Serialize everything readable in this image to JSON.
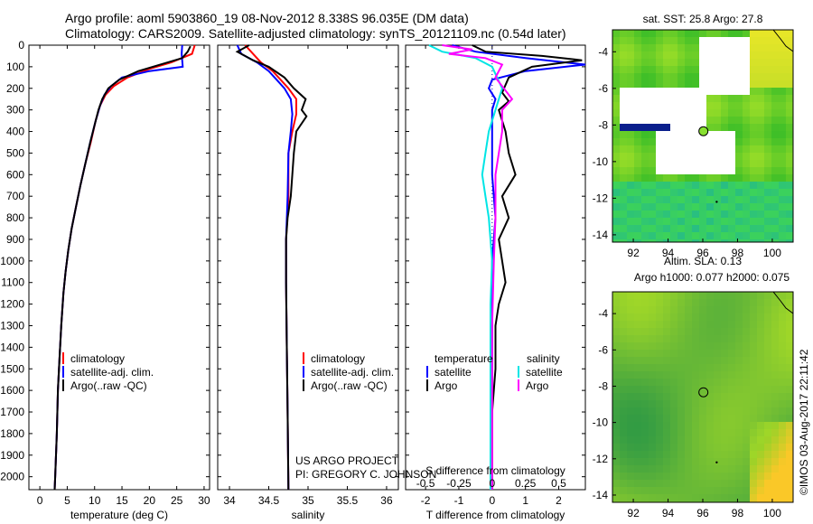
{
  "title_line1": "Argo profile: aoml 5903860_19 08-Nov-2012 8.338S 96.035E (DM data)",
  "title_line2": "Climatology: CARS2009. Satellite-adjusted climatology: synTS_20121109.nc (0.54d later)",
  "credit": "US ARGO PROJECT",
  "pi": "PI: GREGORY C. JOHNSON",
  "side_stamp": "©IMOS 03-Aug-2017 22:11:42",
  "colors": {
    "climatology": "#ff0000",
    "satellite": "#0000ff",
    "argo": "#000000",
    "sal_satellite": "#00e5e5",
    "sal_argo": "#ff00ff"
  },
  "legend": {
    "climatology": "climatology",
    "satellite_adj": "satellite-adj. clim.",
    "argo": "Argo(..raw -QC)",
    "temperature": "temperature",
    "salinity": "salinity",
    "satellite": "satellite",
    "argo_short": "Argo"
  },
  "chart_data": [
    {
      "type": "line",
      "id": "temperature",
      "xlabel": "temperature (deg C)",
      "ylabel": "",
      "xlim": [
        -2,
        31
      ],
      "ylim": [
        2060,
        0
      ],
      "xticks": [
        0,
        5,
        10,
        15,
        20,
        25,
        30
      ],
      "yticks": [
        0,
        100,
        200,
        300,
        400,
        500,
        600,
        700,
        800,
        900,
        1000,
        1100,
        1200,
        1300,
        1400,
        1500,
        1600,
        1700,
        1800,
        1900,
        2000
      ],
      "series": [
        {
          "name": "climatology",
          "color": "red",
          "points": [
            [
              28.3,
              0
            ],
            [
              27.8,
              40
            ],
            [
              24,
              80
            ],
            [
              20,
              110
            ],
            [
              16,
              150
            ],
            [
              13.5,
              190
            ],
            [
              12,
              230
            ],
            [
              11,
              280
            ],
            [
              10.2,
              350
            ],
            [
              9.3,
              450
            ],
            [
              8.3,
              550
            ],
            [
              7.4,
              650
            ],
            [
              6.6,
              750
            ],
            [
              5.8,
              850
            ],
            [
              5.2,
              950
            ],
            [
              4.7,
              1050
            ],
            [
              4.3,
              1150
            ],
            [
              3.9,
              1300
            ],
            [
              3.6,
              1450
            ],
            [
              3.3,
              1600
            ],
            [
              3.1,
              1800
            ],
            [
              2.8,
              2000
            ],
            [
              2.7,
              2060
            ]
          ]
        },
        {
          "name": "satellite-adj. clim.",
          "color": "blue",
          "points": [
            [
              26,
              0
            ],
            [
              25.9,
              40
            ],
            [
              26.1,
              100
            ],
            [
              20,
              120
            ],
            [
              15,
              150
            ],
            [
              13,
              190
            ],
            [
              11.8,
              230
            ],
            [
              11,
              280
            ],
            [
              10.2,
              350
            ],
            [
              9.2,
              450
            ],
            [
              8.3,
              550
            ],
            [
              7.4,
              650
            ],
            [
              6.6,
              750
            ],
            [
              5.8,
              850
            ],
            [
              5.2,
              950
            ],
            [
              4.7,
              1050
            ],
            [
              4.3,
              1150
            ],
            [
              3.9,
              1300
            ],
            [
              3.6,
              1450
            ],
            [
              3.3,
              1600
            ],
            [
              3.1,
              1800
            ],
            [
              2.8,
              2000
            ],
            [
              2.7,
              2060
            ]
          ]
        },
        {
          "name": "Argo(..raw -QC)",
          "color": "black",
          "points": [
            [
              27.5,
              5
            ],
            [
              27,
              30
            ],
            [
              26,
              60
            ],
            [
              18,
              120
            ],
            [
              14.5,
              160
            ],
            [
              12.5,
              200
            ],
            [
              11.4,
              250
            ],
            [
              10.7,
              300
            ],
            [
              10,
              370
            ],
            [
              9.2,
              450
            ],
            [
              8.3,
              550
            ],
            [
              7.4,
              650
            ],
            [
              6.6,
              750
            ],
            [
              5.8,
              850
            ],
            [
              5.2,
              950
            ],
            [
              4.7,
              1050
            ],
            [
              4.3,
              1150
            ],
            [
              3.9,
              1300
            ],
            [
              3.6,
              1450
            ],
            [
              3.3,
              1600
            ],
            [
              3.1,
              1800
            ],
            [
              2.8,
              2000
            ],
            [
              2.7,
              2060
            ]
          ]
        }
      ]
    },
    {
      "type": "line",
      "id": "salinity",
      "xlabel": "salinity",
      "ylabel": "",
      "xlim": [
        33.85,
        36.15
      ],
      "ylim": [
        2060,
        0
      ],
      "xticks": [
        34,
        34.5,
        35,
        35.5,
        36
      ],
      "series": [
        {
          "name": "climatology",
          "color": "red",
          "points": [
            [
              34.2,
              0
            ],
            [
              34.3,
              40
            ],
            [
              34.4,
              80
            ],
            [
              34.55,
              120
            ],
            [
              34.65,
              160
            ],
            [
              34.75,
              200
            ],
            [
              34.85,
              250
            ],
            [
              34.85,
              320
            ],
            [
              34.8,
              400
            ],
            [
              34.75,
              500
            ],
            [
              34.75,
              700
            ],
            [
              34.72,
              900
            ],
            [
              34.72,
              1100
            ],
            [
              34.73,
              1400
            ],
            [
              34.74,
              1700
            ],
            [
              34.75,
              2060
            ]
          ]
        },
        {
          "name": "satellite-adj. clim.",
          "color": "blue",
          "points": [
            [
              34.1,
              0
            ],
            [
              34.15,
              40
            ],
            [
              34.35,
              80
            ],
            [
              34.5,
              120
            ],
            [
              34.6,
              160
            ],
            [
              34.7,
              200
            ],
            [
              34.78,
              250
            ],
            [
              34.8,
              320
            ],
            [
              34.78,
              400
            ],
            [
              34.75,
              500
            ],
            [
              34.74,
              700
            ],
            [
              34.72,
              900
            ],
            [
              34.72,
              1100
            ],
            [
              34.73,
              1400
            ],
            [
              34.74,
              1700
            ],
            [
              34.75,
              2060
            ]
          ]
        },
        {
          "name": "Argo(..raw -QC)",
          "color": "black",
          "points": [
            [
              34.25,
              0
            ],
            [
              34.1,
              30
            ],
            [
              34.3,
              70
            ],
            [
              34.5,
              100
            ],
            [
              34.7,
              150
            ],
            [
              34.82,
              200
            ],
            [
              34.97,
              250
            ],
            [
              34.92,
              300
            ],
            [
              34.98,
              330
            ],
            [
              34.85,
              400
            ],
            [
              34.82,
              500
            ],
            [
              34.8,
              600
            ],
            [
              34.78,
              700
            ],
            [
              34.74,
              800
            ],
            [
              34.72,
              900
            ],
            [
              34.72,
              1100
            ],
            [
              34.73,
              1400
            ],
            [
              34.74,
              1700
            ],
            [
              34.75,
              2060
            ]
          ]
        }
      ]
    },
    {
      "type": "line",
      "id": "difference",
      "xlabel": "T difference from climatology",
      "xlabel2": "S difference from climatology",
      "xlim": [
        -2.6,
        2.8
      ],
      "ylim": [
        2060,
        0
      ],
      "xticks": [
        -2,
        -1,
        0,
        1,
        2
      ],
      "xticks2": [
        -0.5,
        -0.25,
        0,
        0.25,
        0.5
      ],
      "series": [
        {
          "name": "temperature satellite",
          "color": "blue",
          "points": [
            [
              -1.2,
              0
            ],
            [
              -0.5,
              30
            ],
            [
              1,
              60
            ],
            [
              2.8,
              90
            ],
            [
              1,
              120
            ],
            [
              0,
              160
            ],
            [
              -0.1,
              200
            ],
            [
              0.1,
              250
            ],
            [
              0,
              300
            ],
            [
              0,
              400
            ],
            [
              0,
              600
            ],
            [
              0.1,
              800
            ],
            [
              0,
              1000
            ],
            [
              0,
              1200
            ],
            [
              0,
              1400
            ],
            [
              0,
              1700
            ],
            [
              -0.05,
              2060
            ]
          ]
        },
        {
          "name": "temperature Argo",
          "color": "black",
          "points": [
            [
              -0.6,
              0
            ],
            [
              -0.2,
              30
            ],
            [
              1.5,
              50
            ],
            [
              2.7,
              70
            ],
            [
              1.2,
              100
            ],
            [
              0.5,
              150
            ],
            [
              0.3,
              220
            ],
            [
              0.5,
              260
            ],
            [
              0.2,
              300
            ],
            [
              0.4,
              400
            ],
            [
              0.5,
              500
            ],
            [
              0.7,
              600
            ],
            [
              0.3,
              700
            ],
            [
              0.5,
              800
            ],
            [
              0.2,
              900
            ],
            [
              0.3,
              1000
            ],
            [
              0.4,
              1100
            ],
            [
              0.2,
              1200
            ],
            [
              0.1,
              1300
            ],
            [
              0.1,
              1500
            ],
            [
              0,
              1700
            ],
            [
              0,
              2060
            ]
          ]
        },
        {
          "name": "salinity satellite",
          "color": "cyan",
          "points": [
            [
              -1.9,
              0
            ],
            [
              -1.5,
              30
            ],
            [
              -0.5,
              60
            ],
            [
              0,
              100
            ],
            [
              0.3,
              200
            ],
            [
              0.1,
              300
            ],
            [
              -0.1,
              400
            ],
            [
              -0.2,
              500
            ],
            [
              -0.3,
              600
            ],
            [
              -0.2,
              700
            ],
            [
              -0.1,
              800
            ],
            [
              0,
              1000
            ],
            [
              -0.05,
              1200
            ],
            [
              -0.05,
              1500
            ],
            [
              -0.05,
              1800
            ],
            [
              -0.05,
              2060
            ]
          ]
        },
        {
          "name": "salinity Argo",
          "color": "magenta",
          "points": [
            [
              -1.5,
              0
            ],
            [
              -0.6,
              20
            ],
            [
              -1.3,
              40
            ],
            [
              -0.2,
              60
            ],
            [
              0.3,
              90
            ],
            [
              0.1,
              150
            ],
            [
              0.6,
              250
            ],
            [
              0.3,
              300
            ],
            [
              0.3,
              400
            ],
            [
              0.2,
              500
            ],
            [
              0.1,
              600
            ],
            [
              0.1,
              800
            ],
            [
              0.05,
              1000
            ],
            [
              0,
              1300
            ],
            [
              0,
              1700
            ],
            [
              0,
              2060
            ]
          ]
        }
      ]
    },
    {
      "type": "heatmap",
      "id": "sst_map",
      "title": "sat. SST: 25.8  Argo: 27.8",
      "xlim": [
        90.8,
        101.2
      ],
      "ylim": [
        -14.4,
        -2.8
      ],
      "xticks": [
        92,
        94,
        96,
        98,
        100
      ],
      "yticks": [
        -4,
        -6,
        -8,
        -10,
        -12,
        -14
      ],
      "marker": {
        "lon": 96.035,
        "lat": -8.338,
        "sst": 27.8
      }
    },
    {
      "type": "heatmap",
      "id": "sla_map",
      "title": "Altim. SLA: 0.13",
      "subtitle": "Argo h1000: 0.077  h2000: 0.075",
      "xlim": [
        90.8,
        101.2
      ],
      "ylim": [
        -14.4,
        -2.8
      ],
      "xticks": [
        92,
        94,
        96,
        98,
        100
      ],
      "yticks": [
        -4,
        -6,
        -8,
        -10,
        -12,
        -14
      ],
      "marker": {
        "lon": 96.035,
        "lat": -8.338
      }
    }
  ]
}
